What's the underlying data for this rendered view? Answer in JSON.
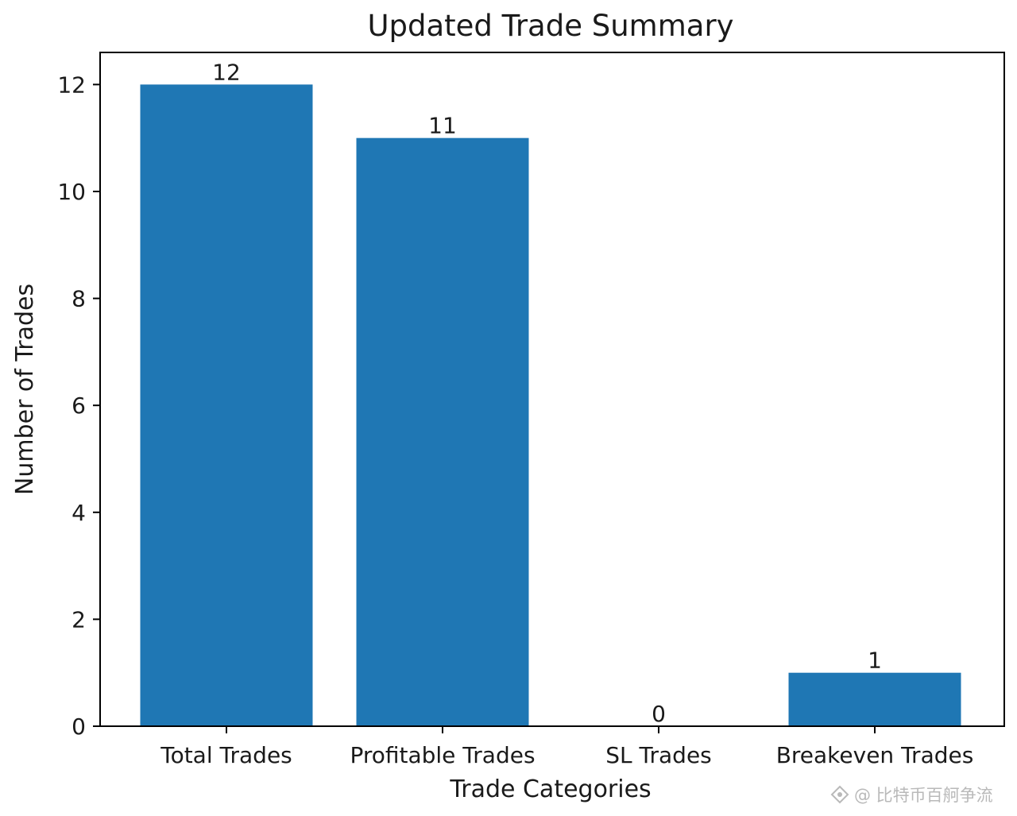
{
  "chart_data": {
    "type": "bar",
    "title": "Updated Trade Summary",
    "xlabel": "Trade Categories",
    "ylabel": "Number of Trades",
    "categories": [
      "Total Trades",
      "Profitable Trades",
      "SL Trades",
      "Breakeven Trades"
    ],
    "values": [
      12,
      11,
      0,
      1
    ],
    "data_labels": [
      "12",
      "11",
      "0",
      "1"
    ],
    "yticks": [
      0,
      2,
      4,
      6,
      8,
      10,
      12
    ],
    "ylim": [
      0,
      12.6
    ],
    "bar_color": "#1f77b4",
    "grid": false,
    "legend": "none"
  },
  "watermark": {
    "text": "@ 比特币百舸争流",
    "icon": "share-diamond-icon"
  }
}
